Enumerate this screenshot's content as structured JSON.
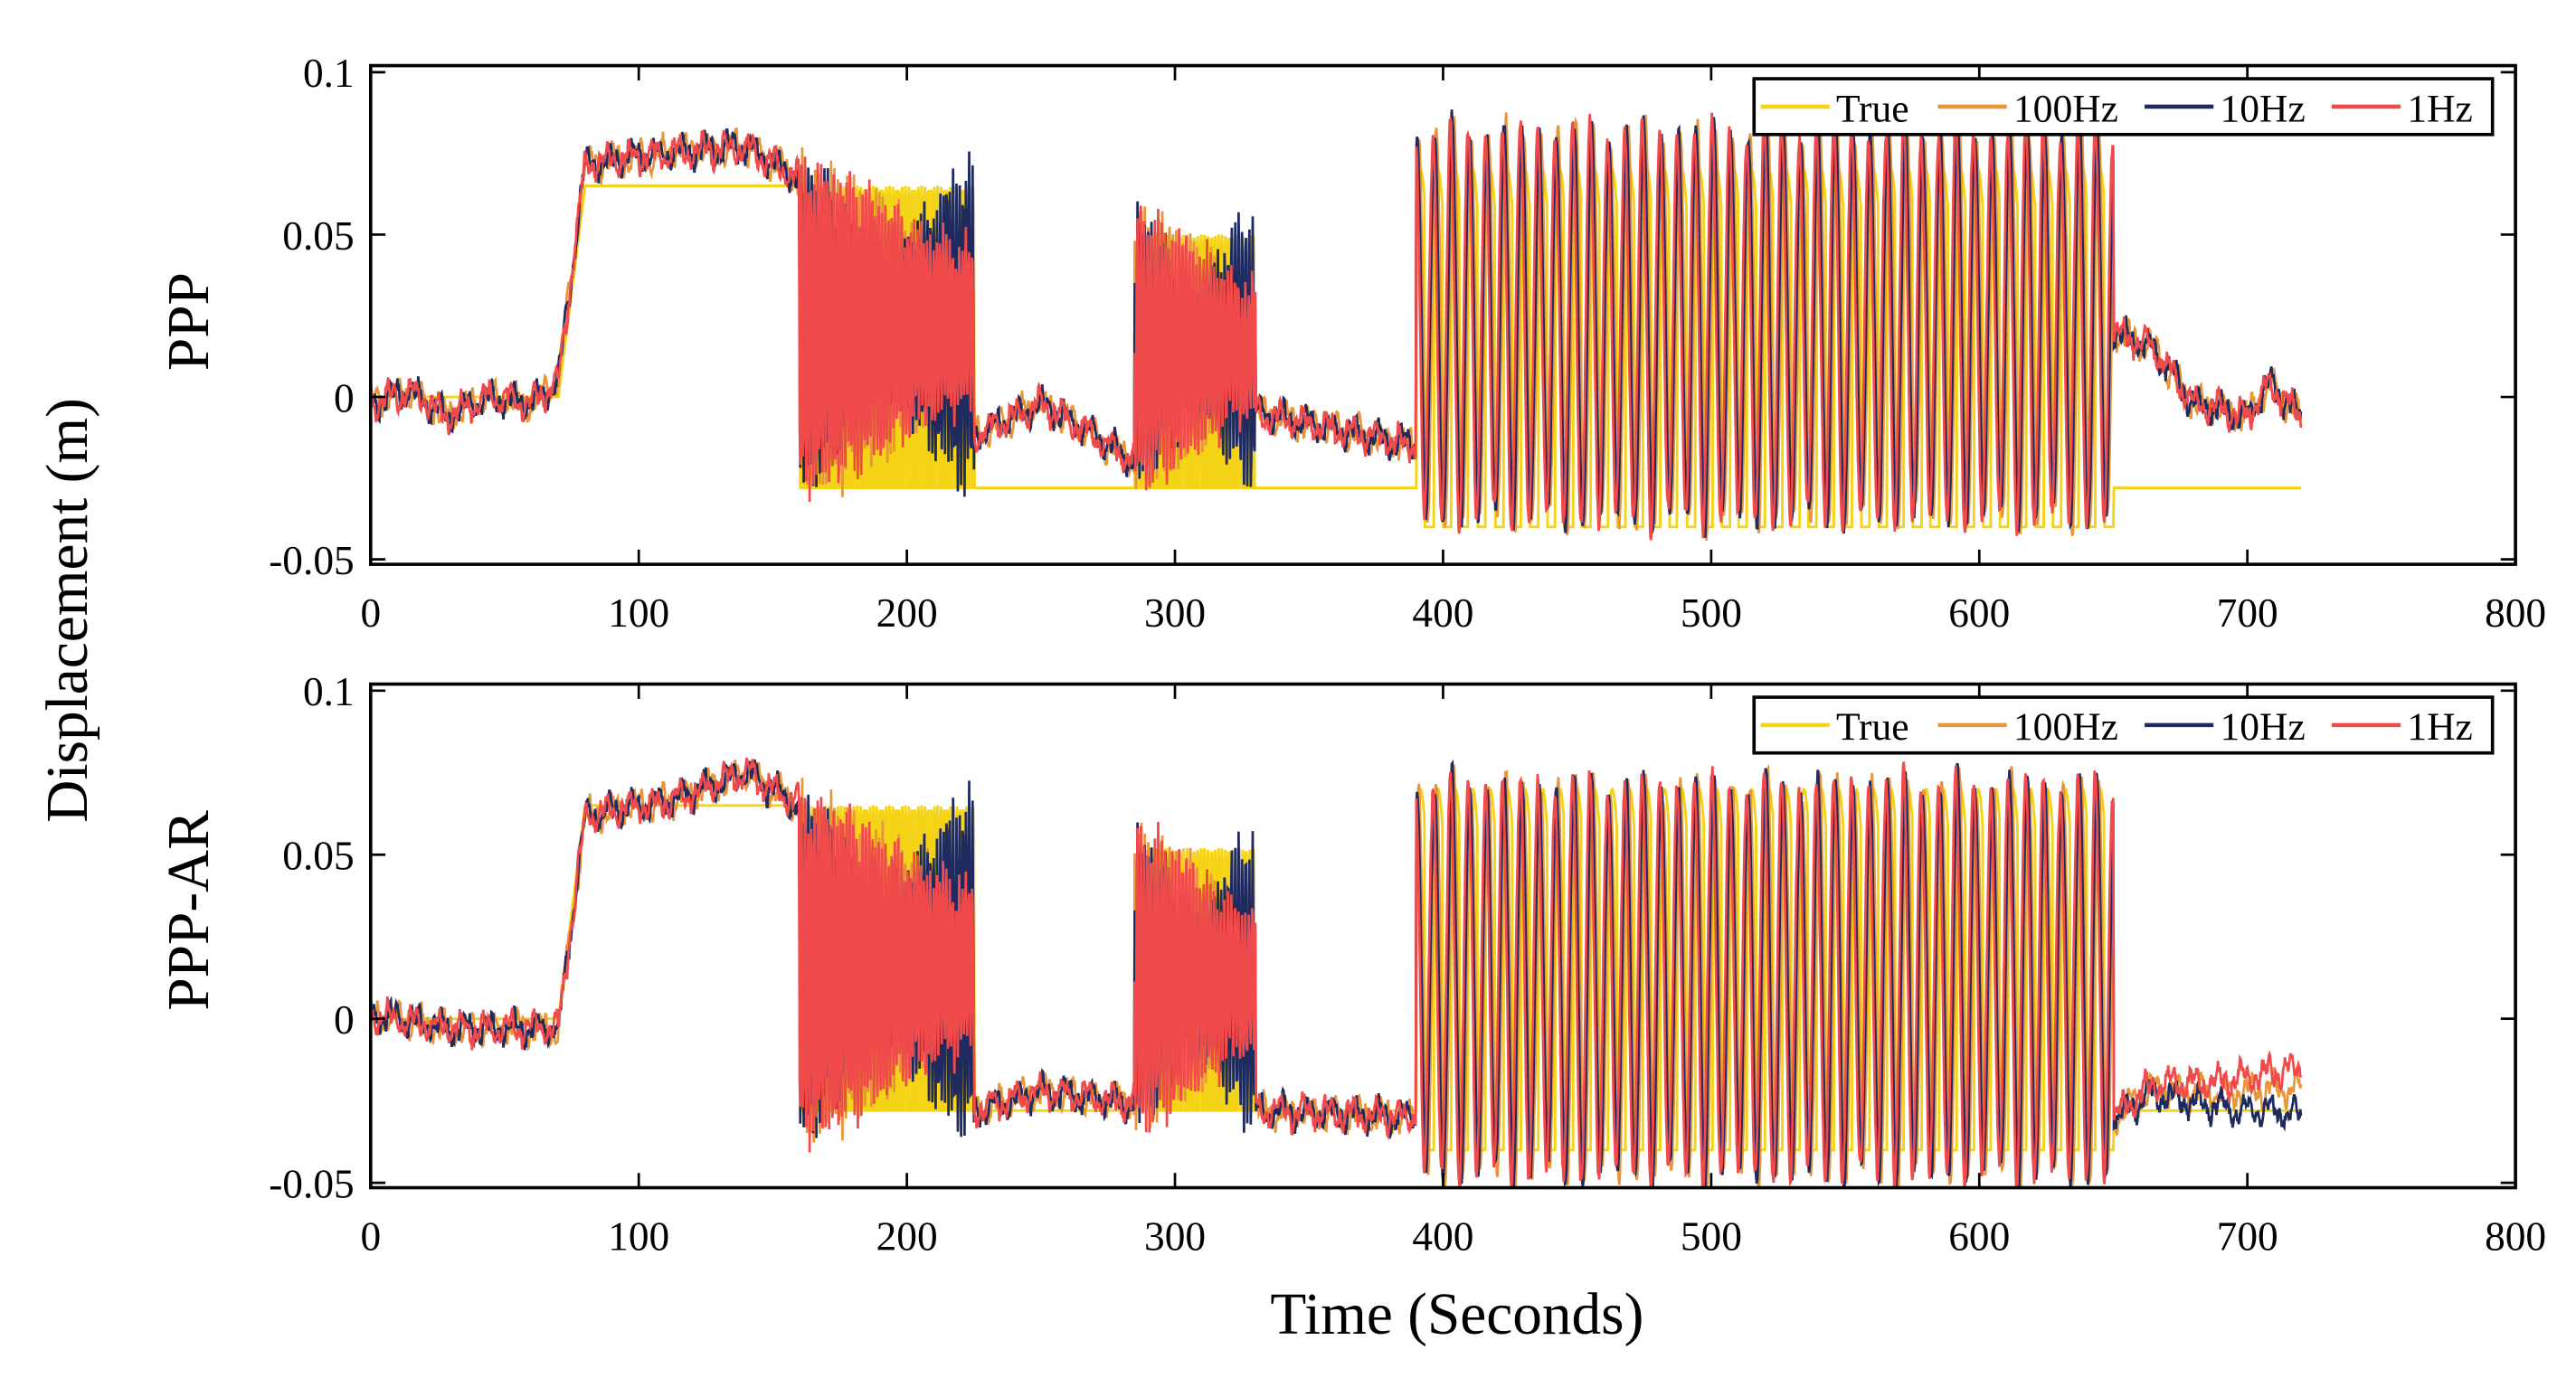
{
  "chart_data": {
    "type": "line",
    "ylabel": "Displacement (m)",
    "xlabel": "Time (Seconds)",
    "colors": {
      "True": "#f5d316",
      "100Hz": "#e8963a",
      "10Hz": "#1f2b5e",
      "1Hz": "#f04a4a"
    },
    "legend_position": "top-right",
    "legend": [
      "True",
      "100Hz",
      "10Hz",
      "1Hz"
    ],
    "xlim": [
      0,
      800
    ],
    "ylim": [
      -0.05,
      0.1
    ],
    "xticks": [
      "0",
      "100",
      "200",
      "300",
      "400",
      "500",
      "600",
      "700",
      "800"
    ],
    "yticks": [
      "-0.05",
      "0",
      "0.05",
      "0.1"
    ],
    "panels": [
      {
        "label": "PPP",
        "true_segments": [
          {
            "t": [
              0,
              70
            ],
            "type": "flat",
            "value": 0
          },
          {
            "t": [
              70,
              80
            ],
            "type": "ramp",
            "from": 0,
            "to": 0.065
          },
          {
            "t": [
              80,
              160
            ],
            "type": "flat",
            "value": 0.065
          },
          {
            "t": [
              160,
              225
            ],
            "type": "osc",
            "low": -0.028,
            "high": 0.065,
            "period": 1.2
          },
          {
            "t": [
              225,
              285
            ],
            "type": "flat",
            "value": -0.028
          },
          {
            "t": [
              285,
              330
            ],
            "type": "osc",
            "low": -0.028,
            "high": 0.05,
            "period": 1.3
          },
          {
            "t": [
              330,
              390
            ],
            "type": "flat",
            "value": -0.028
          },
          {
            "t": [
              390,
              650
            ],
            "type": "osc",
            "low": -0.04,
            "high": 0.07,
            "period": 6.5
          },
          {
            "t": [
              650,
              720
            ],
            "type": "flat",
            "value": -0.028
          }
        ],
        "measured_baseline": [
          [
            0,
            -0.002
          ],
          [
            15,
            0.002
          ],
          [
            28,
            -0.006
          ],
          [
            45,
            0.0
          ],
          [
            60,
            -0.002
          ],
          [
            70,
            0.005
          ],
          [
            80,
            0.072
          ],
          [
            110,
            0.075
          ],
          [
            140,
            0.077
          ],
          [
            160,
            0.067
          ],
          [
            225,
            -0.012
          ],
          [
            250,
            -0.002
          ],
          [
            270,
            -0.012
          ],
          [
            285,
            -0.02
          ],
          [
            330,
            -0.005
          ],
          [
            360,
            -0.01
          ],
          [
            390,
            -0.015
          ],
          [
            650,
            0.02
          ],
          [
            665,
            0.015
          ],
          [
            680,
            -0.002
          ],
          [
            700,
            -0.006
          ],
          [
            708,
            0.004
          ],
          [
            720,
            -0.006
          ]
        ],
        "measured_osc": [
          {
            "t": [
              160,
              225
            ],
            "center": 0.022,
            "amp": 0.05,
            "period": 1.2
          },
          {
            "t": [
              285,
              330
            ],
            "center": 0.015,
            "amp": 0.042,
            "period": 1.3
          },
          {
            "t": [
              390,
              650
            ],
            "center": 0.022,
            "amp": 0.06,
            "period": 6.5
          }
        ]
      },
      {
        "label": "PPP-AR",
        "true_segments": [
          {
            "t": [
              0,
              70
            ],
            "type": "flat",
            "value": 0
          },
          {
            "t": [
              70,
              80
            ],
            "type": "ramp",
            "from": 0,
            "to": 0.065
          },
          {
            "t": [
              80,
              160
            ],
            "type": "flat",
            "value": 0.065
          },
          {
            "t": [
              160,
              225
            ],
            "type": "osc",
            "low": -0.028,
            "high": 0.065,
            "period": 1.2
          },
          {
            "t": [
              225,
              285
            ],
            "type": "flat",
            "value": -0.028
          },
          {
            "t": [
              285,
              330
            ],
            "type": "osc",
            "low": -0.028,
            "high": 0.052,
            "period": 1.3
          },
          {
            "t": [
              330,
              390
            ],
            "type": "flat",
            "value": -0.028
          },
          {
            "t": [
              390,
              650
            ],
            "type": "osc",
            "low": -0.04,
            "high": 0.07,
            "period": 6.5
          },
          {
            "t": [
              650,
              720
            ],
            "type": "flat",
            "value": -0.028
          }
        ],
        "measured_baseline": [
          [
            0,
            0.001
          ],
          [
            30,
            -0.003
          ],
          [
            70,
            -0.003
          ],
          [
            80,
            0.062
          ],
          [
            110,
            0.066
          ],
          [
            140,
            0.075
          ],
          [
            160,
            0.065
          ],
          [
            225,
            -0.028
          ],
          [
            250,
            -0.022
          ],
          [
            285,
            -0.026
          ],
          [
            330,
            -0.028
          ],
          [
            390,
            -0.03
          ],
          [
            650,
            -0.03
          ],
          [
            665,
            -0.022
          ],
          [
            690,
            -0.025
          ],
          [
            720,
            -0.025
          ]
        ],
        "measured_osc": [
          {
            "t": [
              160,
              225
            ],
            "center": 0.016,
            "amp": 0.052,
            "period": 1.2
          },
          {
            "t": [
              285,
              330
            ],
            "center": 0.012,
            "amp": 0.045,
            "period": 1.3
          },
          {
            "t": [
              390,
              650
            ],
            "center": 0.012,
            "amp": 0.06,
            "period": 6.5
          }
        ],
        "series_offsets_after_650": {
          "True": 0,
          "100Hz": 0.004,
          "10Hz": -0.004,
          "1Hz": 0.01
        }
      }
    ]
  }
}
